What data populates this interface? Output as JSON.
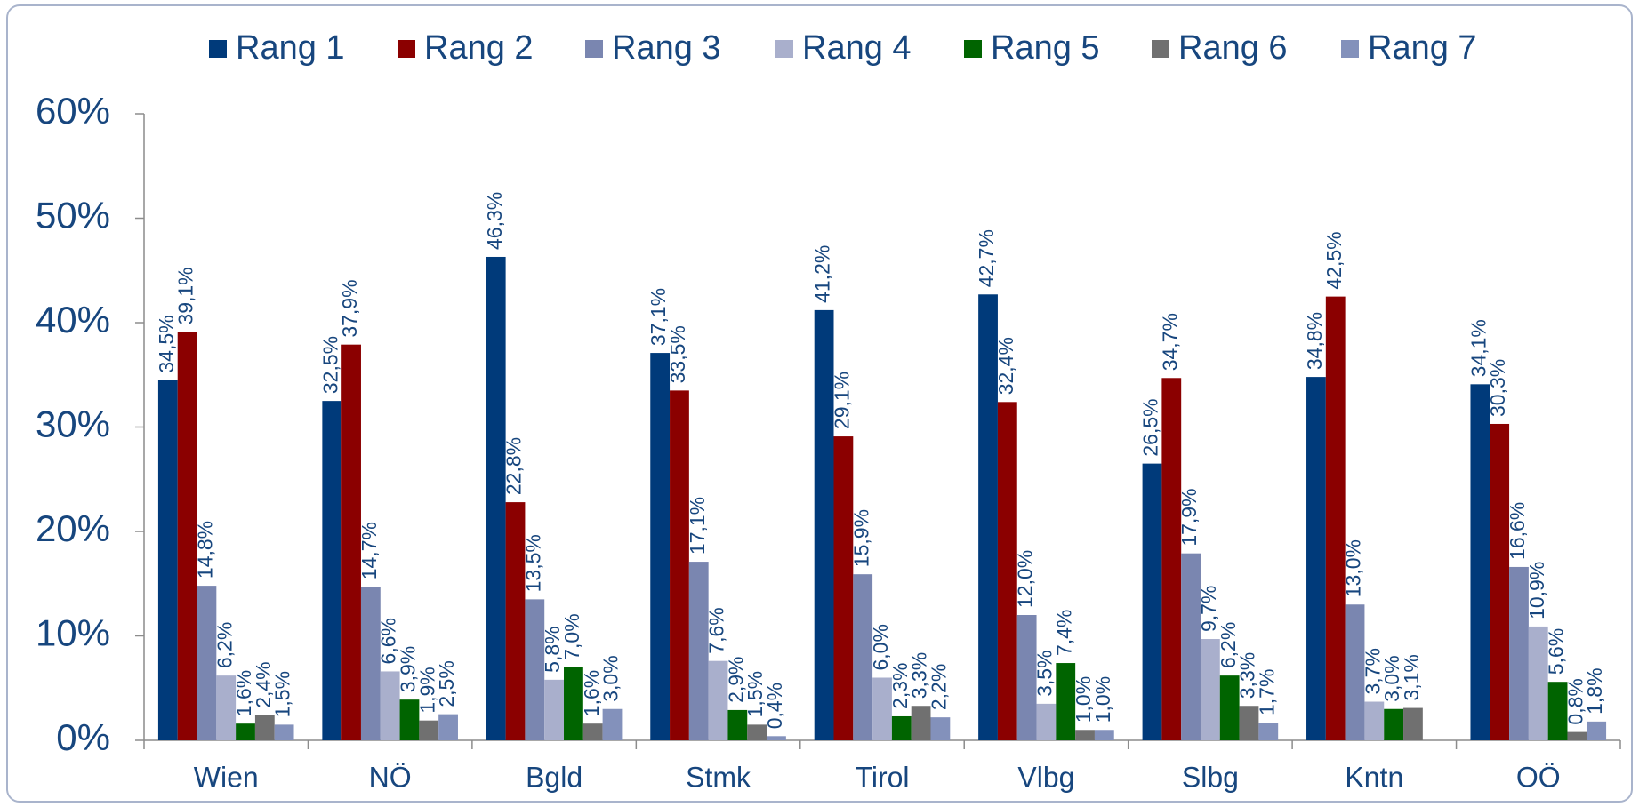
{
  "chart_data": {
    "type": "bar",
    "categories": [
      "Wien",
      "NÖ",
      "Bgld",
      "Stmk",
      "Tirol",
      "Vlbg",
      "Slbg",
      "Kntn",
      "OÖ"
    ],
    "series": [
      {
        "name": "Rang 1",
        "color": "#003a7a",
        "values": [
          34.5,
          32.5,
          46.3,
          37.1,
          41.2,
          42.7,
          26.5,
          34.8,
          34.1
        ],
        "value_labels": [
          "34,5%",
          "32,5%",
          "46,3%",
          "37,1%",
          "41,2%",
          "42,7%",
          "26,5%",
          "34,8%",
          "34,1%"
        ]
      },
      {
        "name": "Rang 2",
        "color": "#8b0000",
        "values": [
          39.1,
          37.9,
          22.8,
          33.5,
          29.1,
          32.4,
          34.7,
          42.5,
          30.3
        ],
        "value_labels": [
          "39,1%",
          "37,9%",
          "22,8%",
          "33,5%",
          "29,1%",
          "32,4%",
          "34,7%",
          "42,5%",
          "30,3%"
        ]
      },
      {
        "name": "Rang 3",
        "color": "#7a86b0",
        "values": [
          14.8,
          14.7,
          13.5,
          17.1,
          15.9,
          12.0,
          17.9,
          13.0,
          16.6
        ],
        "value_labels": [
          "14,8%",
          "14,7%",
          "13,5%",
          "17,1%",
          "15,9%",
          "12,0%",
          "17,9%",
          "13,0%",
          "16,6%"
        ]
      },
      {
        "name": "Rang 4",
        "color": "#a9afcc",
        "values": [
          6.2,
          6.6,
          5.8,
          7.6,
          6.0,
          3.5,
          9.7,
          3.7,
          10.9
        ],
        "value_labels": [
          "6,2%",
          "6,6%",
          "5,8%",
          "7,6%",
          "6,0%",
          "3,5%",
          "9,7%",
          "3,7%",
          "10,9%"
        ]
      },
      {
        "name": "Rang 5",
        "color": "#006400",
        "values": [
          1.6,
          3.9,
          7.0,
          2.9,
          2.3,
          7.4,
          6.2,
          3.0,
          5.6
        ],
        "value_labels": [
          "1,6%",
          "3,9%",
          "7,0%",
          "2,9%",
          "2,3%",
          "7,4%",
          "6,2%",
          "3,0%",
          "5,6%"
        ]
      },
      {
        "name": "Rang 6",
        "color": "#707070",
        "values": [
          2.4,
          1.9,
          1.6,
          1.5,
          3.3,
          1.0,
          3.3,
          3.1,
          0.8
        ],
        "value_labels": [
          "2,4%",
          "1,9%",
          "1,6%",
          "1,5%",
          "3,3%",
          "1,0%",
          "3,3%",
          "3,1%",
          "0,8%"
        ]
      },
      {
        "name": "Rang 7",
        "color": "#8391bb",
        "values": [
          1.5,
          2.5,
          3.0,
          0.4,
          2.2,
          1.0,
          1.7,
          null,
          1.8
        ],
        "value_labels": [
          "1,5%",
          "2,5%",
          "3,0%",
          "0,4%",
          "2,2%",
          "1,0%",
          "1,7%",
          null,
          "1,8%"
        ]
      }
    ],
    "ylim": [
      0,
      60
    ],
    "yticks": [
      {
        "value": 0,
        "label": "0%"
      },
      {
        "value": 10,
        "label": "10%"
      },
      {
        "value": 20,
        "label": "20%"
      },
      {
        "value": 30,
        "label": "30%"
      },
      {
        "value": 40,
        "label": "40%"
      },
      {
        "value": 50,
        "label": "50%"
      },
      {
        "value": 60,
        "label": "60%"
      }
    ],
    "legend": "top"
  }
}
